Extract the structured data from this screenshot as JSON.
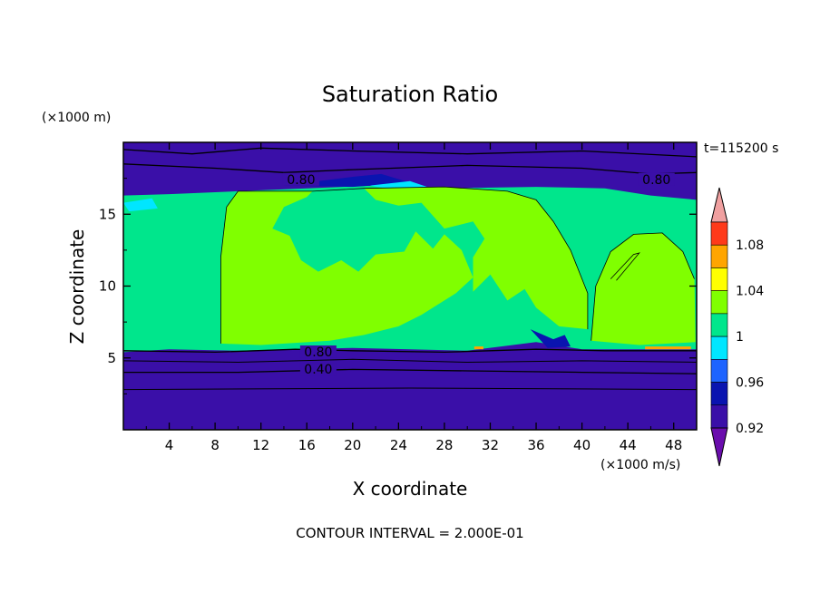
{
  "chart_data": {
    "type": "heatmap",
    "title": "Saturation Ratio",
    "xlabel": "X coordinate",
    "ylabel": "Z coordinate",
    "x_unit": "(×1000 m/s)",
    "y_unit": "(×1000 m)",
    "time_label": "t=115200 s",
    "footer": "CONTOUR INTERVAL = 2.000E-01",
    "xlim": [
      0,
      50
    ],
    "ylim": [
      0,
      20
    ],
    "x_ticks": [
      4,
      8,
      12,
      16,
      20,
      24,
      28,
      32,
      36,
      40,
      44,
      48
    ],
    "y_ticks": [
      5,
      10,
      15
    ],
    "colorbar": {
      "levels": [
        0.9,
        0.92,
        0.94,
        0.96,
        0.98,
        1.0,
        1.02,
        1.04,
        1.06,
        1.08,
        1.1
      ],
      "tick_labels": [
        "0.92",
        "0.96",
        "1",
        "1.04",
        "1.08"
      ],
      "tick_values": [
        0.92,
        0.96,
        1.0,
        1.04,
        1.08
      ],
      "colors": [
        "#6a0dad",
        "#3a0fa8",
        "#0a14b0",
        "#1e64ff",
        "#00e6ff",
        "#00e68c",
        "#80ff00",
        "#ffff00",
        "#ffa500",
        "#ff3a1a",
        "#f0a0a0"
      ]
    },
    "regions": {
      "dry_low": 0.9,
      "near_saturated": 0.99,
      "saturated": 1.01,
      "supersaturated_spot": 1.05
    },
    "contour_labels": [
      {
        "text": "0.80",
        "x": 15.5,
        "y": 17.3
      },
      {
        "text": "0.80",
        "x": 46.5,
        "y": 17.3
      },
      {
        "text": "0.80",
        "x": 17.0,
        "y": 5.3
      },
      {
        "text": "0.40",
        "x": 17.0,
        "y": 4.1
      }
    ]
  }
}
